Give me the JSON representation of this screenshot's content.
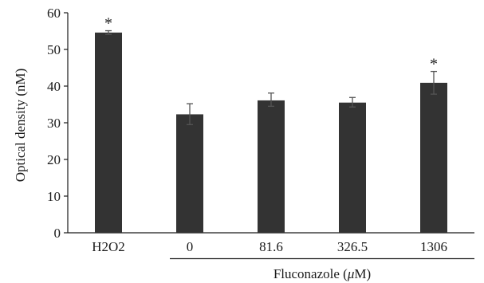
{
  "chart_data": {
    "type": "bar",
    "categories": [
      "H2O2",
      "0",
      "81.6",
      "326.5",
      "1306"
    ],
    "values": [
      54.6,
      32.3,
      36.1,
      35.5,
      40.9
    ],
    "error_low": [
      54.1,
      29.5,
      34.5,
      34.3,
      37.8
    ],
    "error_high": [
      55.1,
      35.2,
      38.1,
      36.9,
      44.0
    ],
    "annotations": [
      "*",
      "",
      "",
      "",
      "*"
    ],
    "title": "",
    "xlabel": "",
    "ylabel": "Optical density (nM)",
    "group_label_prefix": "Fluconazole (",
    "group_label_unit": "μ",
    "group_label_suffix": "M)",
    "ylim": [
      0,
      60
    ],
    "yticks": [
      "0",
      "10",
      "20",
      "30",
      "40",
      "50",
      "60"
    ],
    "bar_color": "#333333",
    "grid": false
  }
}
